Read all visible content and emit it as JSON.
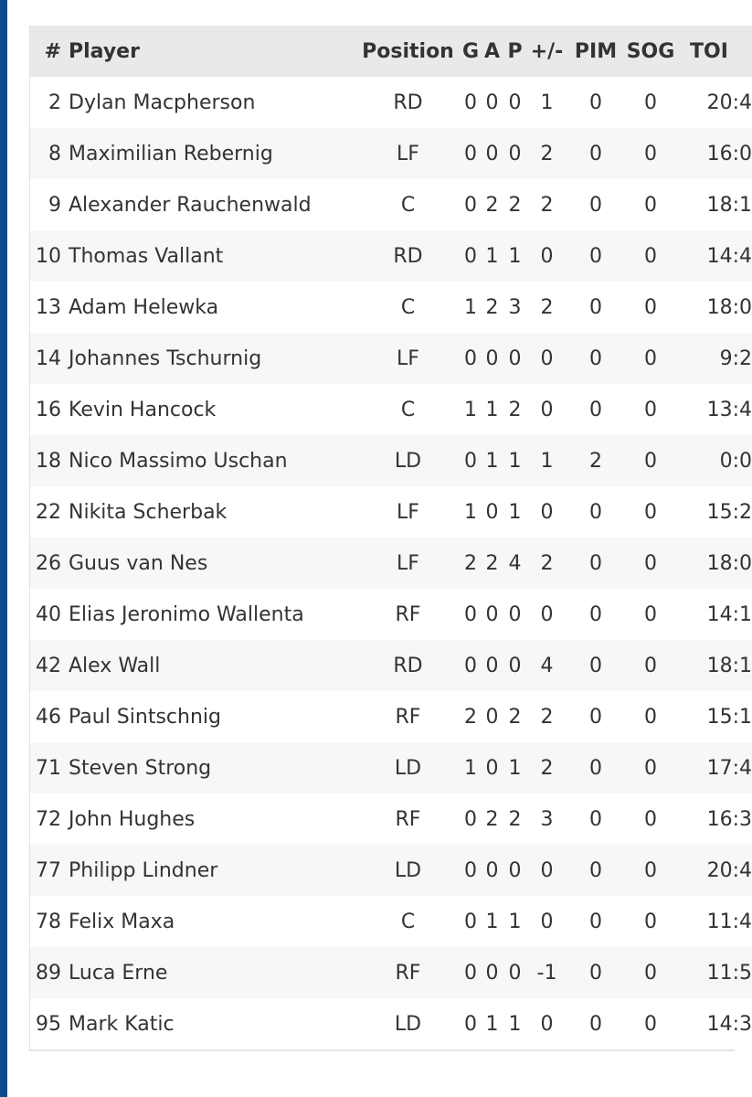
{
  "colors": {
    "sidebar": "#0b4a8b",
    "header_bg": "#e9e9e9",
    "row_alt": "#f7f7f7"
  },
  "headers": {
    "num": "#",
    "player": "Player",
    "position": "Position",
    "g": "G",
    "a": "A",
    "p": "P",
    "pm": "+/-",
    "pim": "PIM",
    "sog": "SOG",
    "toi": "TOI"
  },
  "rows": [
    {
      "num": "2",
      "player": "Dylan Macpherson",
      "position": "RD",
      "g": "0",
      "a": "0",
      "p": "0",
      "pm": "1",
      "pim": "0",
      "sog": "0",
      "toi": "20:4"
    },
    {
      "num": "8",
      "player": "Maximilian Rebernig",
      "position": "LF",
      "g": "0",
      "a": "0",
      "p": "0",
      "pm": "2",
      "pim": "0",
      "sog": "0",
      "toi": "16:0"
    },
    {
      "num": "9",
      "player": "Alexander Rauchenwald",
      "position": "C",
      "g": "0",
      "a": "2",
      "p": "2",
      "pm": "2",
      "pim": "0",
      "sog": "0",
      "toi": "18:1"
    },
    {
      "num": "10",
      "player": "Thomas Vallant",
      "position": "RD",
      "g": "0",
      "a": "1",
      "p": "1",
      "pm": "0",
      "pim": "0",
      "sog": "0",
      "toi": "14:4"
    },
    {
      "num": "13",
      "player": "Adam Helewka",
      "position": "C",
      "g": "1",
      "a": "2",
      "p": "3",
      "pm": "2",
      "pim": "0",
      "sog": "0",
      "toi": "18:0"
    },
    {
      "num": "14",
      "player": "Johannes Tschurnig",
      "position": "LF",
      "g": "0",
      "a": "0",
      "p": "0",
      "pm": "0",
      "pim": "0",
      "sog": "0",
      "toi": "9:2"
    },
    {
      "num": "16",
      "player": "Kevin Hancock",
      "position": "C",
      "g": "1",
      "a": "1",
      "p": "2",
      "pm": "0",
      "pim": "0",
      "sog": "0",
      "toi": "13:4"
    },
    {
      "num": "18",
      "player": "Nico Massimo Uschan",
      "position": "LD",
      "g": "0",
      "a": "1",
      "p": "1",
      "pm": "1",
      "pim": "2",
      "sog": "0",
      "toi": "0:0"
    },
    {
      "num": "22",
      "player": "Nikita Scherbak",
      "position": "LF",
      "g": "1",
      "a": "0",
      "p": "1",
      "pm": "0",
      "pim": "0",
      "sog": "0",
      "toi": "15:2"
    },
    {
      "num": "26",
      "player": "Guus van Nes",
      "position": "LF",
      "g": "2",
      "a": "2",
      "p": "4",
      "pm": "2",
      "pim": "0",
      "sog": "0",
      "toi": "18:0"
    },
    {
      "num": "40",
      "player": "Elias Jeronimo Wallenta",
      "position": "RF",
      "g": "0",
      "a": "0",
      "p": "0",
      "pm": "0",
      "pim": "0",
      "sog": "0",
      "toi": "14:1"
    },
    {
      "num": "42",
      "player": "Alex Wall",
      "position": "RD",
      "g": "0",
      "a": "0",
      "p": "0",
      "pm": "4",
      "pim": "0",
      "sog": "0",
      "toi": "18:1"
    },
    {
      "num": "46",
      "player": "Paul Sintschnig",
      "position": "RF",
      "g": "2",
      "a": "0",
      "p": "2",
      "pm": "2",
      "pim": "0",
      "sog": "0",
      "toi": "15:1"
    },
    {
      "num": "71",
      "player": "Steven Strong",
      "position": "LD",
      "g": "1",
      "a": "0",
      "p": "1",
      "pm": "2",
      "pim": "0",
      "sog": "0",
      "toi": "17:4"
    },
    {
      "num": "72",
      "player": "John Hughes",
      "position": "RF",
      "g": "0",
      "a": "2",
      "p": "2",
      "pm": "3",
      "pim": "0",
      "sog": "0",
      "toi": "16:3"
    },
    {
      "num": "77",
      "player": "Philipp Lindner",
      "position": "LD",
      "g": "0",
      "a": "0",
      "p": "0",
      "pm": "0",
      "pim": "0",
      "sog": "0",
      "toi": "20:4"
    },
    {
      "num": "78",
      "player": "Felix Maxa",
      "position": "C",
      "g": "0",
      "a": "1",
      "p": "1",
      "pm": "0",
      "pim": "0",
      "sog": "0",
      "toi": "11:4"
    },
    {
      "num": "89",
      "player": "Luca Erne",
      "position": "RF",
      "g": "0",
      "a": "0",
      "p": "0",
      "pm": "-1",
      "pim": "0",
      "sog": "0",
      "toi": "11:5"
    },
    {
      "num": "95",
      "player": "Mark Katic",
      "position": "LD",
      "g": "0",
      "a": "1",
      "p": "1",
      "pm": "0",
      "pim": "0",
      "sog": "0",
      "toi": "14:3"
    }
  ]
}
